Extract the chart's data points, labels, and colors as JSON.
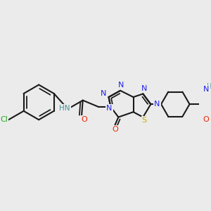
{
  "bg_color": "#ebebeb",
  "bond_color": "#1a1a1a",
  "bond_width": 1.5,
  "figsize": [
    3.0,
    3.0
  ],
  "dpi": 100,
  "colors": {
    "Cl": "#22aa22",
    "N": "#2020ee",
    "O": "#ee2200",
    "S": "#ccaa00",
    "H_teal": "#4a9090"
  }
}
